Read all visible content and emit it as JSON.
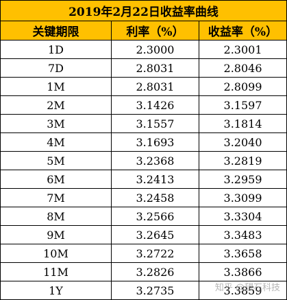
{
  "table": {
    "title": "2019年2月22日收益率曲线",
    "headers": [
      "关键期限",
      "利率（%）",
      "收益率（%）"
    ],
    "rows": [
      [
        "1D",
        "2.3000",
        "2.3001"
      ],
      [
        "7D",
        "2.8031",
        "2.8046"
      ],
      [
        "1M",
        "2.8031",
        "2.8099"
      ],
      [
        "2M",
        "3.1426",
        "3.1597"
      ],
      [
        "3M",
        "3.1557",
        "3.1814"
      ],
      [
        "4M",
        "3.1693",
        "3.2040"
      ],
      [
        "5M",
        "3.2368",
        "3.2819"
      ],
      [
        "6M",
        "3.2413",
        "3.2959"
      ],
      [
        "7M",
        "3.2458",
        "3.3099"
      ],
      [
        "8M",
        "3.2566",
        "3.3304"
      ],
      [
        "9M",
        "3.2645",
        "3.3483"
      ],
      [
        "10M",
        "3.2722",
        "3.3658"
      ],
      [
        "11M",
        "3.2826",
        "3.3866"
      ],
      [
        "1Y",
        "3.2735",
        "3.3859"
      ]
    ]
  },
  "watermark": "知乎 @望石科技"
}
